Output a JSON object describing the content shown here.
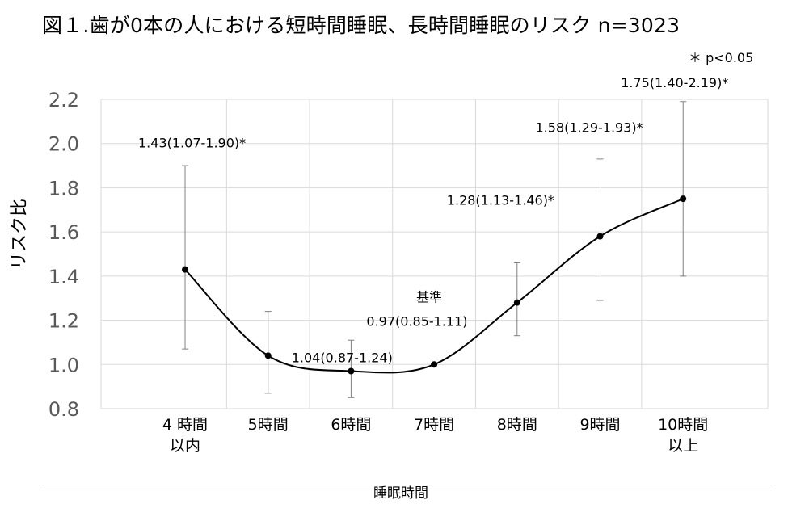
{
  "title": "図１.歯が0本の人における短時間睡眠、長時間睡眠のリスク n=3023",
  "significance_note": "＊ p<0.05",
  "chart_data": {
    "type": "line",
    "title": "図１.歯が0本の人における短時間睡眠、長時間睡眠のリスク n=3023",
    "xlabel": "睡眠時間",
    "ylabel": "リスク比",
    "ylim": [
      0.8,
      2.2
    ],
    "ytick_step": 0.2,
    "yticks": [
      "0.8",
      "1.0",
      "1.2",
      "1.4",
      "1.6",
      "1.8",
      "2.0",
      "2.2"
    ],
    "grid": true,
    "smooth": true,
    "categories": [
      [
        "4 時間",
        "以内"
      ],
      [
        "5時間"
      ],
      [
        "6時間"
      ],
      [
        "7時間"
      ],
      [
        "8時間"
      ],
      [
        "9時間"
      ],
      [
        "10時間",
        "以上"
      ]
    ],
    "values": [
      1.43,
      1.04,
      0.97,
      1.0,
      1.28,
      1.58,
      1.75
    ],
    "ci_lower": [
      1.07,
      0.87,
      0.85,
      null,
      1.13,
      1.29,
      1.4
    ],
    "ci_upper": [
      1.9,
      1.24,
      1.11,
      null,
      1.46,
      1.93,
      2.19
    ],
    "data_labels": [
      "1.43(1.07-1.90)*",
      "1.04(0.87-1.24)",
      "0.97(0.85-1.11)",
      "基準",
      "1.28(1.13-1.46)*",
      "1.58(1.29-1.93)*",
      "1.75(1.40-2.19)*"
    ],
    "colors": {
      "line": "#000000",
      "errorbar": "#808080",
      "grid": "#d9d9d9",
      "tick": "#595959"
    }
  }
}
